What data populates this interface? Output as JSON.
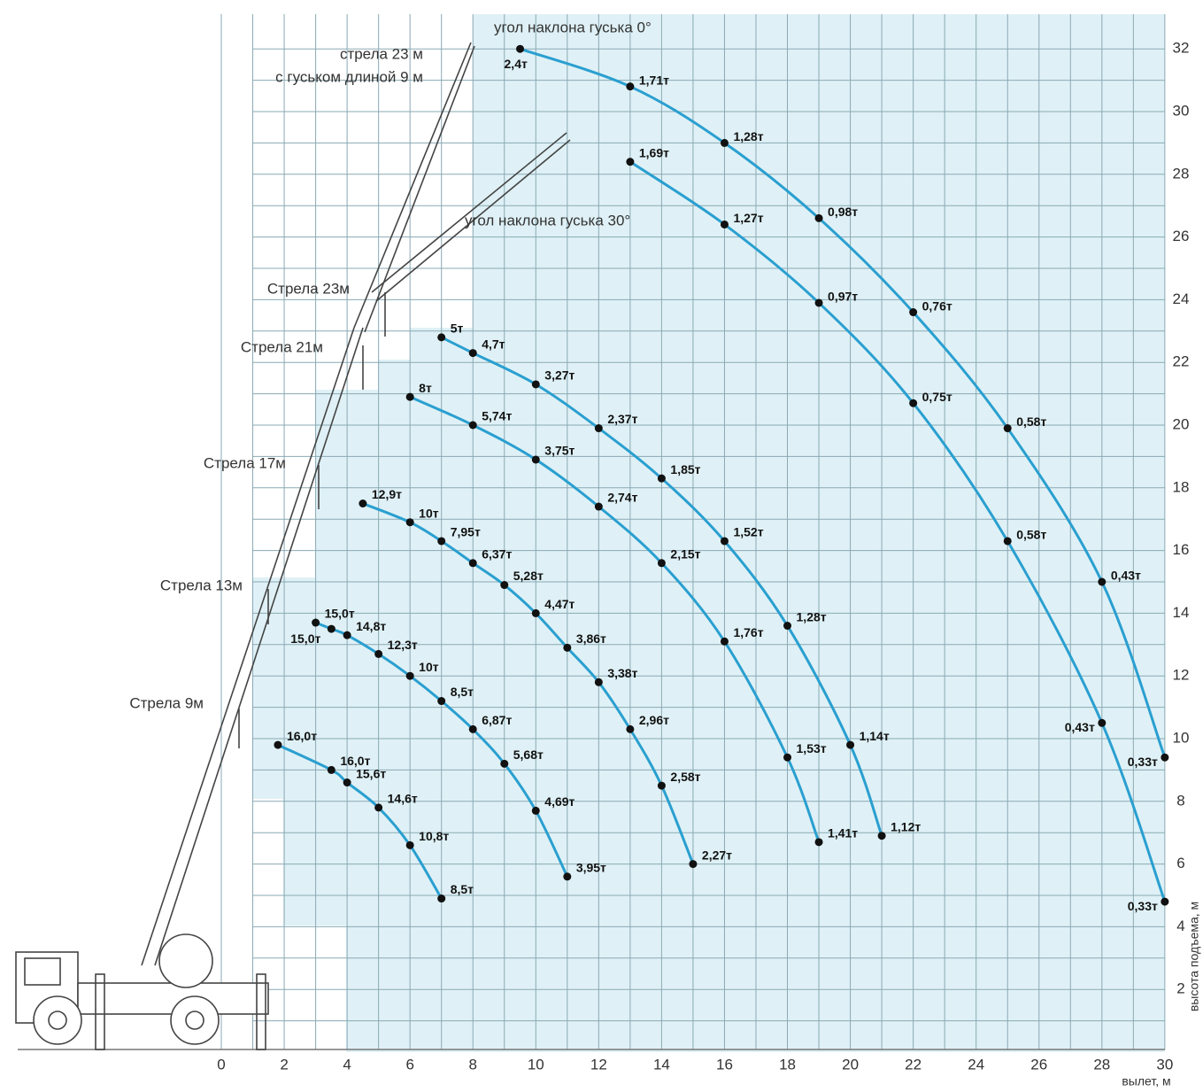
{
  "chart_data": {
    "type": "line",
    "annotations": [
      "стрела 23 м",
      "с гуськом длиной 9 м"
    ],
    "xlabel": "вылет, м",
    "ylabel": "высота подъема, м",
    "xlim": [
      -7,
      31
    ],
    "ylim": [
      0,
      33
    ],
    "xticks": [
      0,
      2,
      4,
      6,
      8,
      10,
      12,
      14,
      16,
      18,
      20,
      22,
      24,
      26,
      28,
      30
    ],
    "yticks": [
      2,
      4,
      6,
      8,
      10,
      12,
      14,
      16,
      18,
      20,
      22,
      24,
      26,
      28,
      30,
      32
    ],
    "grid": true,
    "series": [
      {
        "name": "Стрела 9м",
        "color": "#2a9fd0",
        "x": [
          1.8,
          3.5,
          4,
          5,
          6,
          7
        ],
        "values": [
          9.8,
          9.0,
          8.6,
          7.8,
          6.6,
          4.9
        ],
        "value_labels": [
          "16,0т",
          "16,0т",
          "15,6т",
          "14,6т",
          "10,8т",
          "8,5т"
        ]
      },
      {
        "name": "Стрела 13м",
        "color": "#2a9fd0",
        "x": [
          3,
          3.5,
          4,
          5,
          6,
          7,
          8,
          9,
          10,
          11
        ],
        "values": [
          13.7,
          13.5,
          13.3,
          12.7,
          12.0,
          11.2,
          10.3,
          9.2,
          7.7,
          5.6
        ],
        "value_labels": [
          "15,0т",
          "15,0т",
          "14,8т",
          "12,3т",
          "10т",
          "8,5т",
          "6,87т",
          "5,68т",
          "4,69т",
          "3,95т"
        ]
      },
      {
        "name": "Стрела 17м",
        "color": "#2a9fd0",
        "x": [
          4.5,
          6,
          7,
          8,
          9,
          10,
          11,
          12,
          13,
          14,
          15
        ],
        "values": [
          17.5,
          16.9,
          16.3,
          15.6,
          14.9,
          14.0,
          12.9,
          11.8,
          10.3,
          8.5,
          6.0
        ],
        "value_labels": [
          "12,9т",
          "10т",
          "7,95т",
          "6,37т",
          "5,28т",
          "4,47т",
          "3,86т",
          "3,38т",
          "2,96т",
          "2,58т",
          "2,27т"
        ]
      },
      {
        "name": "Стрела 21м",
        "color": "#2a9fd0",
        "x": [
          6,
          8,
          10,
          12,
          14,
          16,
          18,
          19
        ],
        "values": [
          20.9,
          20.0,
          18.9,
          17.4,
          15.6,
          13.1,
          9.4,
          6.7
        ],
        "value_labels": [
          "8т",
          "5,74т",
          "3,75т",
          "2,74т",
          "2,15т",
          "1,76т",
          "1,53т",
          "1,41т"
        ]
      },
      {
        "name": "Стрела 23м",
        "color": "#2a9fd0",
        "x": [
          7,
          8,
          10,
          12,
          14,
          16,
          18,
          20,
          21
        ],
        "values": [
          22.8,
          22.3,
          21.3,
          19.9,
          18.3,
          16.3,
          13.6,
          9.8,
          6.9
        ],
        "value_labels": [
          "5т",
          "4,7т",
          "3,27т",
          "2,37т",
          "1,85т",
          "1,52т",
          "1,28т",
          "1,14т",
          "1,12т"
        ]
      },
      {
        "name": "угол наклона гуська 30°",
        "color": "#2a9fd0",
        "x": [
          13,
          16,
          19,
          22,
          25,
          28,
          30
        ],
        "values": [
          28.4,
          26.4,
          23.9,
          20.7,
          16.3,
          10.5,
          4.8
        ],
        "value_labels": [
          "1,69т",
          "1,27т",
          "0,97т",
          "0,75т",
          "0,58т",
          "0,43т",
          "0,33т"
        ]
      },
      {
        "name": "угол наклона гуська 0°",
        "color": "#2a9fd0",
        "x": [
          9.5,
          13,
          16,
          19,
          22,
          25,
          28,
          30
        ],
        "values": [
          32.0,
          30.8,
          29.0,
          26.6,
          23.6,
          19.9,
          15.0,
          9.4
        ],
        "value_labels": [
          "2,4т",
          "1,71т",
          "1,28т",
          "0,98т",
          "0,76т",
          "0,58т",
          "0,43т",
          "0,33т"
        ]
      }
    ]
  }
}
